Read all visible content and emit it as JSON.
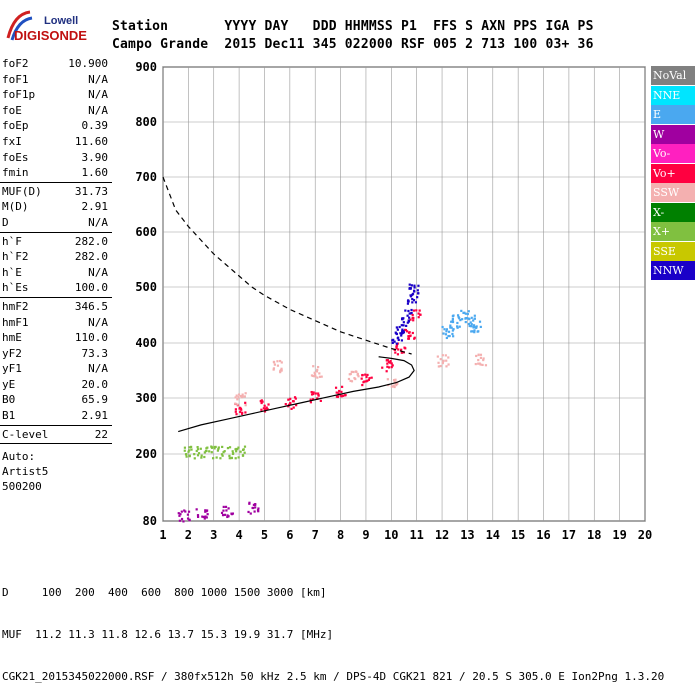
{
  "logo": {
    "top": "Lowell",
    "bottom": "DIGISONDE"
  },
  "header": {
    "row1": "Station       YYYY DAY   DDD HHMMSS P1  FFS S AXN PPS IGA PS",
    "row2": "Campo Grande  2015 Dec11 345 022000 RSF 005 2 713 100 03+ 36"
  },
  "params": [
    {
      "group": [
        {
          "name": "foF2",
          "value": "10.900"
        },
        {
          "name": "foF1",
          "value": "N/A"
        },
        {
          "name": "foF1p",
          "value": "N/A"
        },
        {
          "name": "foE",
          "value": "N/A"
        },
        {
          "name": "foEp",
          "value": "0.39"
        },
        {
          "name": "fxI",
          "value": "11.60"
        },
        {
          "name": "foEs",
          "value": "3.90"
        },
        {
          "name": "fmin",
          "value": "1.60"
        }
      ]
    },
    {
      "group": [
        {
          "name": "MUF(D)",
          "value": "31.73"
        },
        {
          "name": "M(D)",
          "value": "2.91"
        },
        {
          "name": "D",
          "value": "N/A"
        }
      ]
    },
    {
      "group": [
        {
          "name": "h`F",
          "value": "282.0"
        },
        {
          "name": "h`F2",
          "value": "282.0"
        },
        {
          "name": "h`E",
          "value": "N/A"
        },
        {
          "name": "h`Es",
          "value": "100.0"
        }
      ]
    },
    {
      "group": [
        {
          "name": "hmF2",
          "value": "346.5"
        },
        {
          "name": "hmF1",
          "value": "N/A"
        },
        {
          "name": "hmE",
          "value": "110.0"
        },
        {
          "name": "yF2",
          "value": "73.3"
        },
        {
          "name": "yF1",
          "value": "N/A"
        },
        {
          "name": "yE",
          "value": "20.0"
        },
        {
          "name": "B0",
          "value": "65.9"
        },
        {
          "name": "B1",
          "value": "2.91"
        }
      ]
    },
    {
      "group": [
        {
          "name": "C-level",
          "value": "22"
        }
      ]
    }
  ],
  "auto": [
    "Auto:",
    "Artist5",
    "500200"
  ],
  "legend": [
    {
      "label": "NoVal",
      "color": "#808080"
    },
    {
      "label": "NNE",
      "color": "#00e5ff"
    },
    {
      "label": "E",
      "color": "#4aa8f0"
    },
    {
      "label": "W",
      "color": "#a000a0"
    },
    {
      "label": "Vo-",
      "color": "#ff20c0"
    },
    {
      "label": "Vo+",
      "color": "#ff0040"
    },
    {
      "label": "SSW",
      "color": "#f4b0b0"
    },
    {
      "label": "X-",
      "color": "#008000"
    },
    {
      "label": "X+",
      "color": "#80c040"
    },
    {
      "label": "SSE",
      "color": "#c8c800"
    },
    {
      "label": "NNW",
      "color": "#1a00c8"
    }
  ],
  "footer": {
    "line1": "D     100  200  400  600  800 1000 1500 3000 [km]",
    "line2": "MUF  11.2 11.3 11.8 12.6 13.7 15.3 19.9 31.7 [MHz]",
    "line3": "CGK21_2015345022000.RSF / 380fx512h 50 kHz 2.5 km / DPS-4D CGK21 821 / 20.5 S 305.0 E Ion2Png 1.3.20"
  },
  "chart_data": {
    "type": "scatter",
    "xlim": [
      1,
      20
    ],
    "ylim": [
      80,
      900
    ],
    "x_ticks": [
      1,
      2,
      3,
      4,
      5,
      6,
      7,
      8,
      9,
      10,
      11,
      12,
      13,
      14,
      15,
      16,
      17,
      18,
      19,
      20
    ],
    "y_ticks": [
      80,
      200,
      300,
      400,
      500,
      600,
      700,
      800,
      900
    ],
    "grid": true,
    "legend_position": "right",
    "series": [
      {
        "name": "profile",
        "style": "solid",
        "x": [
          1.6,
          2.5,
          3.5,
          4.5,
          5.5,
          6.5,
          7.5,
          8.5,
          9.5,
          10.2,
          10.7,
          10.9,
          10.8,
          10.5,
          10.0,
          9.5
        ],
        "y": [
          240,
          252,
          262,
          272,
          282,
          292,
          302,
          312,
          320,
          328,
          338,
          350,
          360,
          368,
          372,
          375
        ]
      },
      {
        "name": "fitted_trace",
        "style": "dashed",
        "x": [
          1,
          1.5,
          2,
          2.5,
          3,
          3.5,
          4,
          4.5,
          5,
          6,
          7,
          8,
          9,
          10,
          10.8
        ],
        "y": [
          700,
          640,
          610,
          585,
          560,
          540,
          520,
          500,
          485,
          460,
          440,
          420,
          405,
          390,
          380
        ]
      },
      {
        "name": "Vo+",
        "x": [
          4.0,
          5.0,
          6.0,
          7.0,
          8.0,
          9.0,
          9.8,
          10.3,
          10.7,
          10.9
        ],
        "y": [
          283,
          287,
          293,
          302,
          315,
          335,
          360,
          392,
          420,
          450
        ]
      },
      {
        "name": "NNW",
        "x": [
          10.2,
          10.4,
          10.6,
          10.8,
          10.9
        ],
        "y": [
          410,
          430,
          450,
          480,
          500
        ]
      },
      {
        "name": "E",
        "x": [
          12.2,
          12.5,
          12.8,
          13.1,
          13.3
        ],
        "y": [
          420,
          440,
          450,
          440,
          430
        ]
      },
      {
        "name": "SSW",
        "x": [
          4.0,
          5.5,
          7.0,
          8.5,
          10.0,
          12.0,
          13.5
        ],
        "y": [
          300,
          360,
          350,
          340,
          330,
          370,
          370
        ]
      },
      {
        "name": "X+",
        "x": [
          2.0,
          2.5,
          3.0,
          3.5,
          4.0
        ],
        "y": [
          205,
          205,
          205,
          205,
          205
        ]
      },
      {
        "name": "W",
        "x": [
          1.8,
          2.5,
          3.5,
          4.5
        ],
        "y": [
          92,
          95,
          100,
          105
        ]
      }
    ]
  }
}
